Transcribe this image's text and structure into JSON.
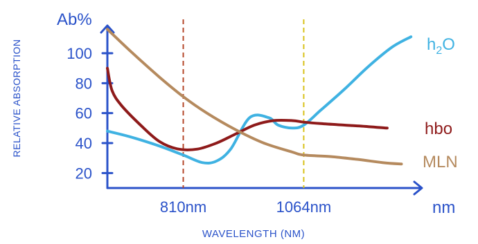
{
  "chart_data": {
    "type": "line",
    "ylabel": "RELATIVE ABSORPTION",
    "yunit": "Ab%",
    "xlabel": "WAVELENGTH (NM)",
    "xunit": "nm",
    "yticks": [
      20,
      40,
      60,
      80,
      100
    ],
    "ylim": [
      10,
      118
    ],
    "xlim": [
      650,
      1300
    ],
    "markers": [
      {
        "label": "810nm",
        "x": 810,
        "color": "#b5482b"
      },
      {
        "label": "1064nm",
        "x": 1064,
        "color": "#d8c21a"
      }
    ],
    "series": [
      {
        "name": "h2O",
        "name_main": "h",
        "name_sub": "2",
        "name_end": "O",
        "color": "#3fb2e2",
        "x": [
          650,
          700,
          760,
          810,
          850,
          880,
          910,
          950,
          990,
          1010,
          1040,
          1064,
          1100,
          1150,
          1200,
          1250,
          1290
        ],
        "y": [
          48,
          44,
          38,
          32,
          27,
          28,
          36,
          57,
          57,
          52,
          50,
          52,
          62,
          76,
          91,
          104,
          111
        ]
      },
      {
        "name": "hbo",
        "color": "#8e1a1a",
        "x": [
          650,
          660,
          680,
          720,
          760,
          800,
          840,
          880,
          920,
          960,
          1000,
          1040,
          1064,
          1100,
          1150,
          1200,
          1240
        ],
        "y": [
          90,
          75,
          65,
          52,
          41,
          36,
          36,
          40,
          46,
          52,
          55,
          55,
          54,
          53,
          52,
          51,
          50
        ]
      },
      {
        "name": "MLN",
        "color": "#b58a5e",
        "x": [
          650,
          700,
          760,
          810,
          860,
          920,
          980,
          1040,
          1064,
          1120,
          1180,
          1230,
          1270
        ],
        "y": [
          116,
          101,
          84,
          71,
          60,
          49,
          40,
          34,
          32,
          31,
          29,
          27,
          26
        ]
      }
    ],
    "axis_color": "#2a52c9"
  }
}
